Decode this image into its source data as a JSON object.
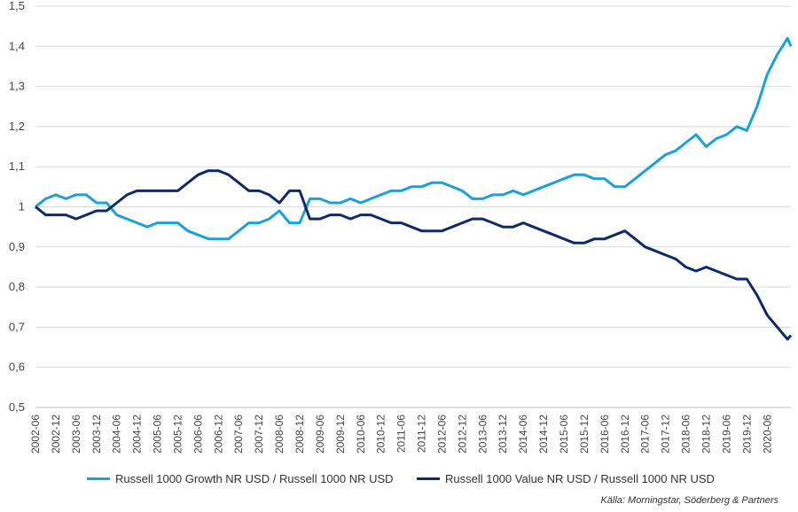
{
  "chart_data": {
    "type": "line",
    "ylim": [
      0.5,
      1.5
    ],
    "y_ticks": [
      "0,5",
      "0,6",
      "0,7",
      "0,8",
      "0,9",
      "1",
      "1,1",
      "1,2",
      "1,3",
      "1,4",
      "1,5"
    ],
    "y_tick_values": [
      0.5,
      0.6,
      0.7,
      0.8,
      0.9,
      1.0,
      1.1,
      1.2,
      1.3,
      1.4,
      1.5
    ],
    "x_ticks": [
      "2002-06",
      "2002-12",
      "2003-06",
      "2003-12",
      "2004-06",
      "2004-12",
      "2005-06",
      "2005-12",
      "2006-06",
      "2006-12",
      "2007-06",
      "2007-12",
      "2008-06",
      "2008-12",
      "2009-06",
      "2009-12",
      "2010-06",
      "2010-12",
      "2011-06",
      "2011-12",
      "2012-06",
      "2012-12",
      "2013-06",
      "2013-12",
      "2014-06",
      "2014-12",
      "2015-06",
      "2015-12",
      "2016-06",
      "2016-12",
      "2017-06",
      "2017-12",
      "2018-06",
      "2018-12",
      "2019-06",
      "2019-12",
      "2020-06"
    ],
    "grid": true,
    "legend_position": "bottom",
    "series": [
      {
        "name": "Russell 1000 Growth NR USD / Russell 1000 NR USD",
        "color": "#1aa0dc",
        "points": [
          [
            "2002-06",
            1.0
          ],
          [
            "2002-09",
            1.02
          ],
          [
            "2002-12",
            1.03
          ],
          [
            "2003-03",
            1.02
          ],
          [
            "2003-06",
            1.03
          ],
          [
            "2003-09",
            1.03
          ],
          [
            "2003-12",
            1.01
          ],
          [
            "2004-03",
            1.01
          ],
          [
            "2004-06",
            0.98
          ],
          [
            "2004-09",
            0.97
          ],
          [
            "2004-12",
            0.96
          ],
          [
            "2005-03",
            0.95
          ],
          [
            "2005-06",
            0.96
          ],
          [
            "2005-09",
            0.96
          ],
          [
            "2005-12",
            0.96
          ],
          [
            "2006-03",
            0.94
          ],
          [
            "2006-06",
            0.93
          ],
          [
            "2006-09",
            0.92
          ],
          [
            "2006-12",
            0.92
          ],
          [
            "2007-03",
            0.92
          ],
          [
            "2007-06",
            0.94
          ],
          [
            "2007-09",
            0.96
          ],
          [
            "2007-12",
            0.96
          ],
          [
            "2008-03",
            0.97
          ],
          [
            "2008-06",
            0.99
          ],
          [
            "2008-09",
            0.96
          ],
          [
            "2008-12",
            0.96
          ],
          [
            "2009-03",
            1.02
          ],
          [
            "2009-06",
            1.02
          ],
          [
            "2009-09",
            1.01
          ],
          [
            "2009-12",
            1.01
          ],
          [
            "2010-03",
            1.02
          ],
          [
            "2010-06",
            1.01
          ],
          [
            "2010-09",
            1.02
          ],
          [
            "2010-12",
            1.03
          ],
          [
            "2011-03",
            1.04
          ],
          [
            "2011-06",
            1.04
          ],
          [
            "2011-09",
            1.05
          ],
          [
            "2011-12",
            1.05
          ],
          [
            "2012-03",
            1.06
          ],
          [
            "2012-06",
            1.06
          ],
          [
            "2012-09",
            1.05
          ],
          [
            "2012-12",
            1.04
          ],
          [
            "2013-03",
            1.02
          ],
          [
            "2013-06",
            1.02
          ],
          [
            "2013-09",
            1.03
          ],
          [
            "2013-12",
            1.03
          ],
          [
            "2014-03",
            1.04
          ],
          [
            "2014-06",
            1.03
          ],
          [
            "2014-09",
            1.04
          ],
          [
            "2014-12",
            1.05
          ],
          [
            "2015-03",
            1.06
          ],
          [
            "2015-06",
            1.07
          ],
          [
            "2015-09",
            1.08
          ],
          [
            "2015-12",
            1.08
          ],
          [
            "2016-03",
            1.07
          ],
          [
            "2016-06",
            1.07
          ],
          [
            "2016-09",
            1.05
          ],
          [
            "2016-12",
            1.05
          ],
          [
            "2017-03",
            1.07
          ],
          [
            "2017-06",
            1.09
          ],
          [
            "2017-09",
            1.11
          ],
          [
            "2017-12",
            1.13
          ],
          [
            "2018-03",
            1.14
          ],
          [
            "2018-06",
            1.16
          ],
          [
            "2018-09",
            1.18
          ],
          [
            "2018-12",
            1.15
          ],
          [
            "2019-03",
            1.17
          ],
          [
            "2019-06",
            1.18
          ],
          [
            "2019-09",
            1.2
          ],
          [
            "2019-12",
            1.19
          ],
          [
            "2020-03",
            1.25
          ],
          [
            "2020-06",
            1.33
          ],
          [
            "2020-09",
            1.38
          ],
          [
            "2020-12",
            1.42
          ],
          [
            "2021-01",
            1.4
          ]
        ]
      },
      {
        "name": "Russell 1000 Value NR USD / Russell 1000 NR USD",
        "color": "#0d2a6b",
        "points": [
          [
            "2002-06",
            1.0
          ],
          [
            "2002-09",
            0.98
          ],
          [
            "2002-12",
            0.98
          ],
          [
            "2003-03",
            0.98
          ],
          [
            "2003-06",
            0.97
          ],
          [
            "2003-09",
            0.98
          ],
          [
            "2003-12",
            0.99
          ],
          [
            "2004-03",
            0.99
          ],
          [
            "2004-06",
            1.01
          ],
          [
            "2004-09",
            1.03
          ],
          [
            "2004-12",
            1.04
          ],
          [
            "2005-03",
            1.04
          ],
          [
            "2005-06",
            1.04
          ],
          [
            "2005-09",
            1.04
          ],
          [
            "2005-12",
            1.04
          ],
          [
            "2006-03",
            1.06
          ],
          [
            "2006-06",
            1.08
          ],
          [
            "2006-09",
            1.09
          ],
          [
            "2006-12",
            1.09
          ],
          [
            "2007-03",
            1.08
          ],
          [
            "2007-06",
            1.06
          ],
          [
            "2007-09",
            1.04
          ],
          [
            "2007-12",
            1.04
          ],
          [
            "2008-03",
            1.03
          ],
          [
            "2008-06",
            1.01
          ],
          [
            "2008-09",
            1.04
          ],
          [
            "2008-12",
            1.04
          ],
          [
            "2009-03",
            0.97
          ],
          [
            "2009-06",
            0.97
          ],
          [
            "2009-09",
            0.98
          ],
          [
            "2009-12",
            0.98
          ],
          [
            "2010-03",
            0.97
          ],
          [
            "2010-06",
            0.98
          ],
          [
            "2010-09",
            0.98
          ],
          [
            "2010-12",
            0.97
          ],
          [
            "2011-03",
            0.96
          ],
          [
            "2011-06",
            0.96
          ],
          [
            "2011-09",
            0.95
          ],
          [
            "2011-12",
            0.94
          ],
          [
            "2012-03",
            0.94
          ],
          [
            "2012-06",
            0.94
          ],
          [
            "2012-09",
            0.95
          ],
          [
            "2012-12",
            0.96
          ],
          [
            "2013-03",
            0.97
          ],
          [
            "2013-06",
            0.97
          ],
          [
            "2013-09",
            0.96
          ],
          [
            "2013-12",
            0.95
          ],
          [
            "2014-03",
            0.95
          ],
          [
            "2014-06",
            0.96
          ],
          [
            "2014-09",
            0.95
          ],
          [
            "2014-12",
            0.94
          ],
          [
            "2015-03",
            0.93
          ],
          [
            "2015-06",
            0.92
          ],
          [
            "2015-09",
            0.91
          ],
          [
            "2015-12",
            0.91
          ],
          [
            "2016-03",
            0.92
          ],
          [
            "2016-06",
            0.92
          ],
          [
            "2016-09",
            0.93
          ],
          [
            "2016-12",
            0.94
          ],
          [
            "2017-03",
            0.92
          ],
          [
            "2017-06",
            0.9
          ],
          [
            "2017-09",
            0.89
          ],
          [
            "2017-12",
            0.88
          ],
          [
            "2018-03",
            0.87
          ],
          [
            "2018-06",
            0.85
          ],
          [
            "2018-09",
            0.84
          ],
          [
            "2018-12",
            0.85
          ],
          [
            "2019-03",
            0.84
          ],
          [
            "2019-06",
            0.83
          ],
          [
            "2019-09",
            0.82
          ],
          [
            "2019-12",
            0.82
          ],
          [
            "2020-03",
            0.78
          ],
          [
            "2020-06",
            0.73
          ],
          [
            "2020-09",
            0.7
          ],
          [
            "2020-12",
            0.67
          ],
          [
            "2021-01",
            0.68
          ]
        ]
      }
    ],
    "source": "Källa: Morningstar, Söderberg & Partners"
  },
  "legend": {
    "growth_label": "Russell 1000 Growth NR USD / Russell 1000 NR USD",
    "value_label": "Russell 1000 Value NR USD / Russell 1000 NR USD"
  }
}
